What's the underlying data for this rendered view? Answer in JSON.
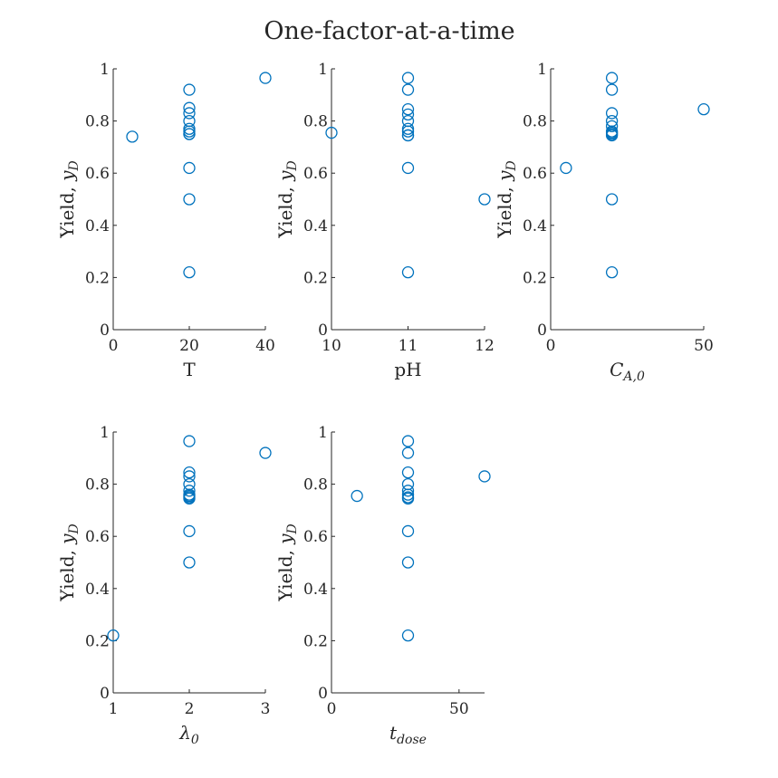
{
  "figure_title": "One-factor-at-a-time",
  "marker_color": "#0072BD",
  "chart_data": [
    {
      "type": "scatter",
      "xlabel": "T",
      "ylabel": "Yield, y_D",
      "xlim": [
        0,
        40
      ],
      "ylim": [
        0,
        1
      ],
      "xticks": [
        0,
        20,
        40
      ],
      "yticks": [
        0,
        0.2,
        0.4,
        0.6,
        0.8,
        1
      ],
      "x": [
        5,
        20,
        20,
        20,
        20,
        20,
        20,
        20,
        20,
        20,
        20,
        20,
        40
      ],
      "y": [
        0.74,
        0.92,
        0.85,
        0.83,
        0.8,
        0.77,
        0.76,
        0.75,
        0.75,
        0.62,
        0.5,
        0.22,
        0.965
      ]
    },
    {
      "type": "scatter",
      "xlabel": "pH",
      "ylabel": "Yield, y_D",
      "xlim": [
        10,
        12
      ],
      "ylim": [
        0,
        1
      ],
      "xticks": [
        10,
        11,
        12
      ],
      "yticks": [
        0,
        0.2,
        0.4,
        0.6,
        0.8,
        1
      ],
      "x": [
        10,
        11,
        11,
        11,
        11,
        11,
        11,
        11,
        11,
        11,
        11,
        11,
        12
      ],
      "y": [
        0.755,
        0.965,
        0.92,
        0.845,
        0.825,
        0.8,
        0.77,
        0.76,
        0.745,
        0.745,
        0.62,
        0.22,
        0.5
      ]
    },
    {
      "type": "scatter",
      "xlabel": "C_{A,0}",
      "ylabel": "Yield, y_D",
      "xlim": [
        0,
        50
      ],
      "ylim": [
        0,
        1
      ],
      "xticks": [
        0,
        50
      ],
      "yticks": [
        0,
        0.2,
        0.4,
        0.6,
        0.8,
        1
      ],
      "x": [
        5,
        20,
        20,
        20,
        20,
        20,
        20,
        20,
        20,
        20,
        20,
        20,
        50
      ],
      "y": [
        0.62,
        0.965,
        0.92,
        0.83,
        0.8,
        0.78,
        0.76,
        0.755,
        0.75,
        0.745,
        0.5,
        0.22,
        0.845
      ]
    },
    {
      "type": "scatter",
      "xlabel": "λ_0",
      "ylabel": "Yield, y_D",
      "xlim": [
        1,
        3
      ],
      "ylim": [
        0,
        1
      ],
      "xticks": [
        1,
        2,
        3
      ],
      "yticks": [
        0,
        0.2,
        0.4,
        0.6,
        0.8,
        1
      ],
      "x": [
        1,
        2,
        2,
        2,
        2,
        2,
        2,
        2,
        2,
        2,
        2,
        2,
        3
      ],
      "y": [
        0.22,
        0.965,
        0.845,
        0.83,
        0.8,
        0.775,
        0.76,
        0.755,
        0.75,
        0.745,
        0.62,
        0.5,
        0.92
      ]
    },
    {
      "type": "scatter",
      "xlabel": "t_dose",
      "ylabel": "Yield, y_D",
      "xlim": [
        0,
        60
      ],
      "ylim": [
        0,
        1
      ],
      "xticks": [
        0,
        50
      ],
      "yticks": [
        0,
        0.2,
        0.4,
        0.6,
        0.8,
        1
      ],
      "x": [
        10,
        30,
        30,
        30,
        30,
        30,
        30,
        30,
        30,
        30,
        30,
        30,
        60
      ],
      "y": [
        0.755,
        0.965,
        0.92,
        0.845,
        0.8,
        0.775,
        0.76,
        0.75,
        0.745,
        0.62,
        0.5,
        0.22,
        0.83
      ]
    }
  ]
}
